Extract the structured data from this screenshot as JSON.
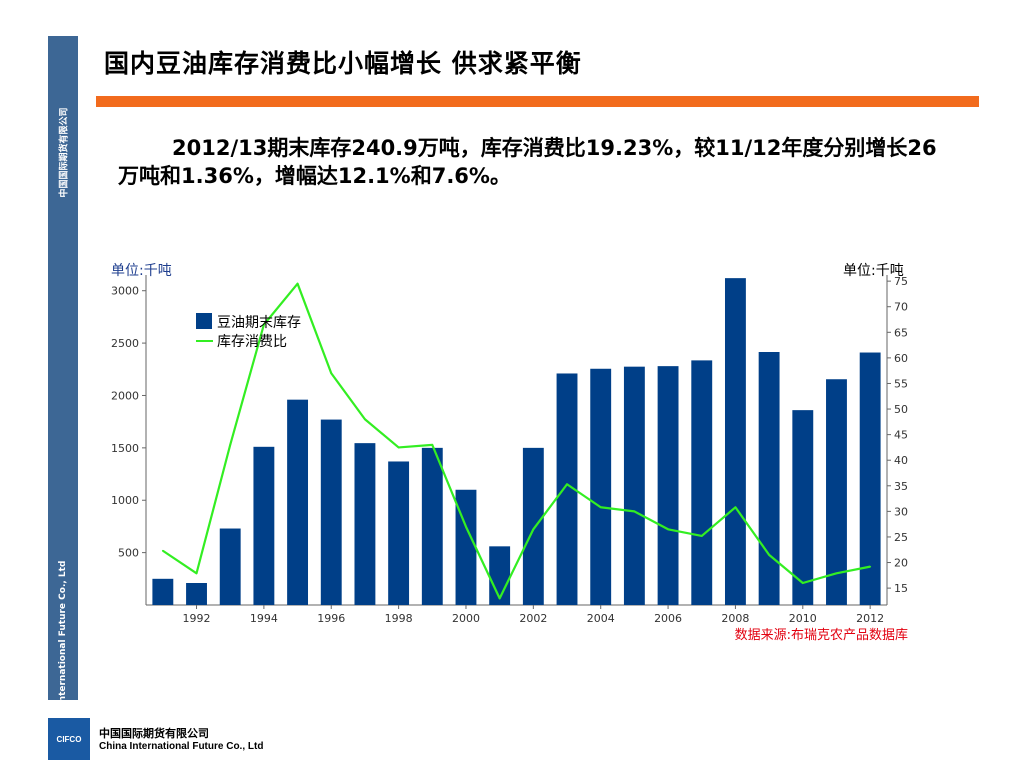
{
  "sidebar": {
    "company_cn": "中国国际期货有限公司",
    "company_en": "China International Future Co., Ltd",
    "color": "#3d6795"
  },
  "header": {
    "title": "国内豆油库存消费比小幅增长  供求紧平衡",
    "rule_color": "#f26b1d"
  },
  "summary": {
    "text": "2012/13期末库存240.9万吨，库存消费比19.23%，较11/12年度分别增长26万吨和1.36%，增幅达12.1%和7.6%。"
  },
  "chart_data": {
    "type": "bar+line",
    "left_unit_label": "单位:千吨",
    "right_unit_label": "单位:千吨",
    "x": [
      1991,
      1992,
      1993,
      1994,
      1995,
      1996,
      1997,
      1998,
      1999,
      2000,
      2001,
      2002,
      2003,
      2004,
      2005,
      2006,
      2007,
      2008,
      2009,
      2010,
      2011,
      2012
    ],
    "x_tick_labels": [
      "1992",
      "1994",
      "1996",
      "1998",
      "2000",
      "2002",
      "2004",
      "2006",
      "2008",
      "2010",
      "2012"
    ],
    "series": [
      {
        "name": "豆油期末库存",
        "type": "bar",
        "axis": "left",
        "color": "#003f88",
        "values": [
          250,
          210,
          730,
          1510,
          1960,
          1770,
          1545,
          1370,
          1500,
          1100,
          560,
          1500,
          2210,
          2255,
          2275,
          2280,
          2335,
          3120,
          2415,
          1860,
          2155,
          2410
        ]
      },
      {
        "name": "库存消费比",
        "type": "line",
        "axis": "right",
        "color": "#33ee22",
        "values": [
          22.3,
          17.9,
          43,
          66.5,
          74.5,
          57,
          48,
          42.5,
          43,
          27,
          13,
          26.5,
          35.3,
          30.8,
          30,
          26.5,
          25.2,
          30.8,
          21.5,
          16,
          17.9,
          19.2
        ]
      }
    ],
    "y_left": {
      "range": [
        0,
        3150
      ],
      "ticks": [
        500,
        1000,
        1500,
        2000,
        2500,
        3000
      ]
    },
    "y_right": {
      "range": [
        11.7,
        76.2
      ],
      "ticks": [
        15,
        20,
        25,
        30,
        35,
        40,
        45,
        50,
        55,
        60,
        65,
        70,
        75
      ]
    },
    "legend_position": "top-left",
    "source_note": "数据来源:布瑞克农产品数据库",
    "source_color": "#e2000f"
  },
  "footer": {
    "logo_text": "CIFCO",
    "company_cn": "中国国际期货有限公司",
    "company_en": "China International Future Co., Ltd"
  }
}
